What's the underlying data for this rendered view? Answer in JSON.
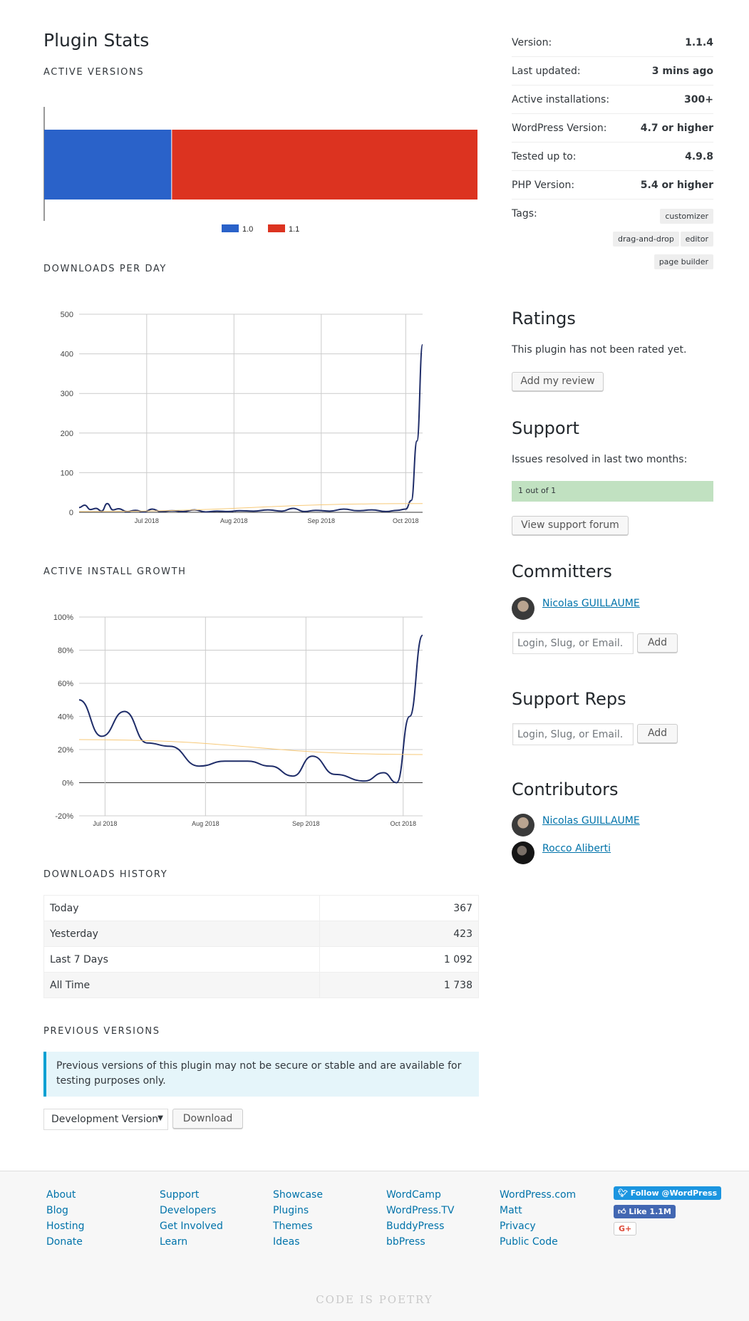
{
  "page": {
    "title": "Plugin Stats"
  },
  "active_versions": {
    "heading": "ACTIVE VERSIONS",
    "chart_data": {
      "type": "bar",
      "stacked": true,
      "orientation": "horizontal",
      "series": [
        {
          "name": "1.0",
          "values": [
            29.5
          ],
          "color": "#2a62c9"
        },
        {
          "name": "1.1",
          "values": [
            70.5
          ],
          "color": "#dc3320"
        }
      ],
      "legend": "bottom"
    }
  },
  "downloads_per_day": {
    "heading": "DOWNLOADS PER DAY",
    "chart_data": {
      "type": "line",
      "x_ticks": [
        "Jul 2018",
        "Aug 2018",
        "Sep 2018",
        "Oct 2018"
      ],
      "y_ticks": [
        "0",
        "100",
        "200",
        "300",
        "400",
        "500"
      ],
      "ylim": [
        0,
        500
      ],
      "xlim": [
        "2018-06-07",
        "2018-10-07"
      ],
      "series": [
        {
          "color": "#1f2d69",
          "points": [
            [
              "2018-06-07",
              12
            ],
            [
              "2018-06-09",
              18
            ],
            [
              "2018-06-11",
              7
            ],
            [
              "2018-06-13",
              10
            ],
            [
              "2018-06-15",
              3
            ],
            [
              "2018-06-17",
              22
            ],
            [
              "2018-06-19",
              6
            ],
            [
              "2018-06-21",
              9
            ],
            [
              "2018-06-24",
              2
            ],
            [
              "2018-06-27",
              5
            ],
            [
              "2018-06-30",
              1
            ],
            [
              "2018-07-03",
              8
            ],
            [
              "2018-07-06",
              2
            ],
            [
              "2018-07-10",
              4
            ],
            [
              "2018-07-14",
              2
            ],
            [
              "2018-07-18",
              6
            ],
            [
              "2018-07-22",
              1
            ],
            [
              "2018-07-26",
              3
            ],
            [
              "2018-07-30",
              2
            ],
            [
              "2018-08-03",
              4
            ],
            [
              "2018-08-08",
              3
            ],
            [
              "2018-08-13",
              6
            ],
            [
              "2018-08-18",
              3
            ],
            [
              "2018-08-22",
              10
            ],
            [
              "2018-08-26",
              2
            ],
            [
              "2018-08-30",
              5
            ],
            [
              "2018-09-04",
              3
            ],
            [
              "2018-09-09",
              8
            ],
            [
              "2018-09-14",
              4
            ],
            [
              "2018-09-19",
              6
            ],
            [
              "2018-09-24",
              2
            ],
            [
              "2018-09-28",
              5
            ],
            [
              "2018-10-01",
              8
            ],
            [
              "2018-10-03",
              30
            ],
            [
              "2018-10-05",
              180
            ],
            [
              "2018-10-07",
              423
            ]
          ]
        },
        {
          "color": "#f7c978",
          "points": [
            [
              "2018-06-07",
              2
            ],
            [
              "2018-10-07",
              22
            ]
          ]
        }
      ]
    }
  },
  "active_install_growth": {
    "heading": "ACTIVE INSTALL GROWTH",
    "chart_data": {
      "type": "line",
      "x_ticks": [
        "Jul 2018",
        "Aug 2018",
        "Sep 2018",
        "Oct 2018"
      ],
      "y_ticks": [
        "-20%",
        "0%",
        "20%",
        "40%",
        "60%",
        "80%",
        "100%"
      ],
      "ylim": [
        -20,
        100
      ],
      "xlim": [
        "2018-06-23",
        "2018-10-07"
      ],
      "series": [
        {
          "color": "#1f2d69",
          "points": [
            [
              "2018-06-23",
              50
            ],
            [
              "2018-06-30",
              28
            ],
            [
              "2018-07-07",
              43
            ],
            [
              "2018-07-14",
              24
            ],
            [
              "2018-07-21",
              22
            ],
            [
              "2018-07-30",
              10
            ],
            [
              "2018-08-07",
              13
            ],
            [
              "2018-08-14",
              13
            ],
            [
              "2018-08-21",
              10
            ],
            [
              "2018-08-28",
              4
            ],
            [
              "2018-09-03",
              16
            ],
            [
              "2018-09-10",
              5
            ],
            [
              "2018-09-19",
              1
            ],
            [
              "2018-09-25",
              6
            ],
            [
              "2018-09-29",
              0
            ],
            [
              "2018-10-03",
              40
            ],
            [
              "2018-10-07",
              89
            ]
          ]
        },
        {
          "color": "#f7c978",
          "points": [
            [
              "2018-06-23",
              26
            ],
            [
              "2018-10-07",
              17
            ]
          ]
        }
      ]
    }
  },
  "downloads_history": {
    "heading": "DOWNLOADS HISTORY",
    "rows": [
      {
        "label": "Today",
        "value": "367"
      },
      {
        "label": "Yesterday",
        "value": "423"
      },
      {
        "label": "Last 7 Days",
        "value": "1 092"
      },
      {
        "label": "All Time",
        "value": "1 738"
      }
    ]
  },
  "previous_versions": {
    "heading": "PREVIOUS VERSIONS",
    "notice": "Previous versions of this plugin may not be secure or stable and are available for testing purposes only.",
    "select_value": "Development Version",
    "download_label": "Download"
  },
  "meta": {
    "rows": [
      {
        "key": "Version:",
        "value": "1.1.4"
      },
      {
        "key": "Last updated:",
        "value": "3 mins ago"
      },
      {
        "key": "Active installations:",
        "value": "300+"
      },
      {
        "key": "WordPress Version:",
        "value": "4.7 or higher"
      },
      {
        "key": "Tested up to:",
        "value": "4.9.8"
      },
      {
        "key": "PHP Version:",
        "value": "5.4 or higher"
      }
    ],
    "tags_label": "Tags:",
    "tags": [
      "customizer",
      "drag-and-drop",
      "editor",
      "page builder"
    ]
  },
  "ratings": {
    "heading": "Ratings",
    "text": "This plugin has not been rated yet.",
    "button": "Add my review"
  },
  "support": {
    "heading": "Support",
    "text": "Issues resolved in last two months:",
    "bar_text": "1 out of 1",
    "bar_fraction": 1.0,
    "button": "View support forum"
  },
  "committers": {
    "heading": "Committers",
    "name": "Nicolas GUILLAUME ",
    "placeholder": "Login, Slug, or Email.",
    "add": "Add"
  },
  "support_reps": {
    "heading": "Support Reps",
    "placeholder": "Login, Slug, or Email.",
    "add": "Add"
  },
  "contributors": {
    "heading": "Contributors",
    "names": [
      "Nicolas GUILLAUME",
      "Rocco Aliberti"
    ]
  },
  "footer": {
    "columns": [
      [
        "About",
        "Blog",
        "Hosting",
        "Donate"
      ],
      [
        "Support",
        "Developers",
        "Get Involved",
        "Learn"
      ],
      [
        "Showcase",
        "Plugins",
        "Themes",
        "Ideas"
      ],
      [
        "WordCamp",
        "WordPress.TV",
        "BuddyPress",
        "bbPress"
      ],
      [
        "WordPress.com",
        "Matt",
        "Privacy",
        "Public Code"
      ]
    ],
    "twitter": "Follow @WordPress",
    "facebook": "Like 1.1M",
    "gplus": "G+",
    "poetry": "CODE IS POETRY"
  },
  "colors": {
    "accent": "#0073aa",
    "support_bar": "#c1e1c1",
    "notice_bg": "#e5f5fa"
  }
}
